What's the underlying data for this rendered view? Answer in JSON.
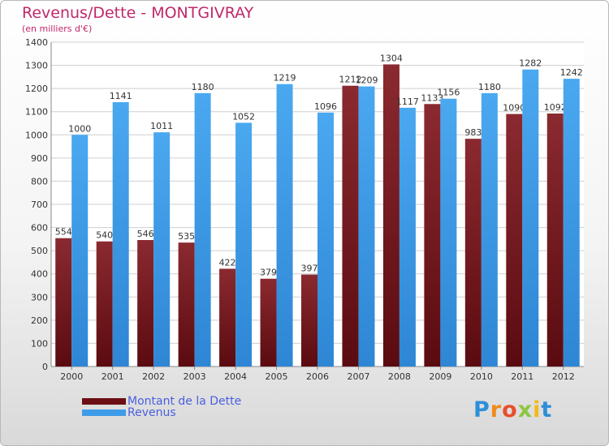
{
  "page": {
    "title": "Revenus/Dette - MONTGIVRAY",
    "subtitle": "(en milliers d'€)",
    "logo_text": "Proxiti"
  },
  "legend": [
    {
      "label": "Montant de la Dette",
      "color": "#6b0f14"
    },
    {
      "label": "Revenus",
      "color": "#3f9ce8"
    }
  ],
  "colors": {
    "title": "#c0286a",
    "legend_text": "#4a5fe0",
    "debt_bar": "#6b0f14",
    "revenue_bar": "#3f9ce8",
    "grid": "#cfcfcf"
  },
  "chart_data": {
    "type": "bar",
    "title": "Revenus/Dette - MONTGIVRAY",
    "subtitle": "(en milliers d'€)",
    "categories": [
      "2000",
      "2001",
      "2002",
      "2003",
      "2004",
      "2005",
      "2006",
      "2007",
      "2008",
      "2009",
      "2010",
      "2011",
      "2012"
    ],
    "series": [
      {
        "name": "Montant de la Dette",
        "values": [
          554,
          540,
          546,
          535,
          422,
          379,
          397,
          1212,
          1304,
          1133,
          983,
          1090,
          1092
        ]
      },
      {
        "name": "Revenus",
        "values": [
          1000,
          1141,
          1011,
          1180,
          1052,
          1219,
          1096,
          1209,
          1117,
          1156,
          1180,
          1282,
          1242
        ]
      }
    ],
    "ylim": [
      0,
      1400
    ],
    "yticks": [
      0,
      100,
      200,
      300,
      400,
      500,
      600,
      700,
      800,
      900,
      1000,
      1100,
      1200,
      1300,
      1400
    ],
    "grid": true,
    "legend_position": "bottom-left"
  }
}
